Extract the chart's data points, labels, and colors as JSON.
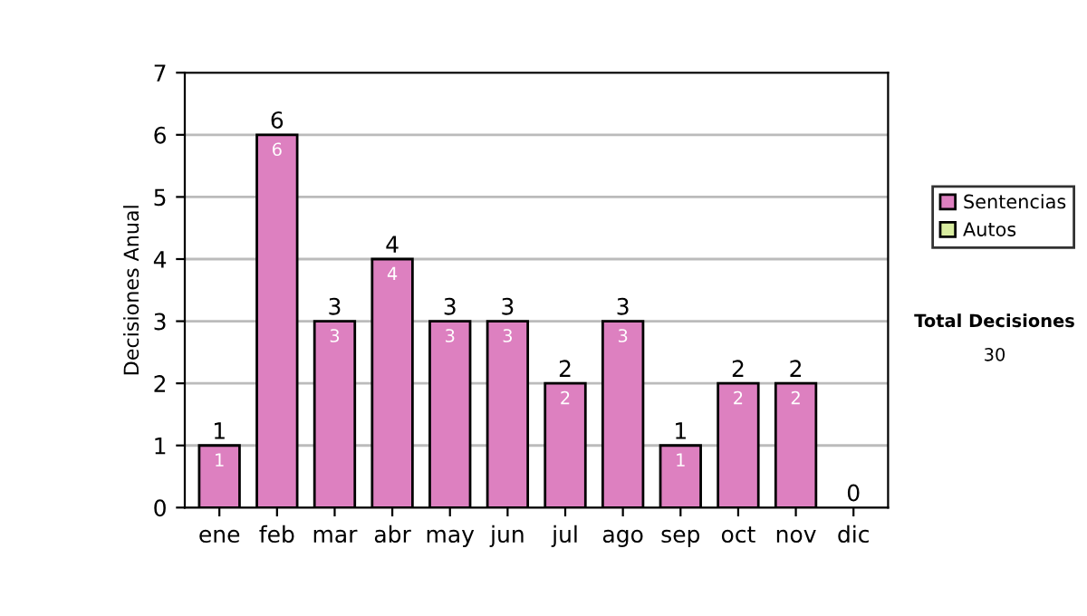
{
  "chart_data": {
    "type": "bar",
    "ylabel": "Decisiones Anual",
    "categories": [
      "ene",
      "feb",
      "mar",
      "abr",
      "may",
      "jun",
      "jul",
      "ago",
      "sep",
      "oct",
      "nov",
      "dic"
    ],
    "series": [
      {
        "name": "Sentencias",
        "color": "#dd80c0",
        "values": [
          1,
          6,
          3,
          4,
          3,
          3,
          2,
          3,
          1,
          2,
          2,
          0
        ],
        "value_labels": [
          "1",
          "6",
          "3",
          "4",
          "3",
          "3",
          "2",
          "3",
          "1",
          "2",
          "2",
          null
        ]
      },
      {
        "name": "Autos",
        "color": "#d8eca0",
        "values": [
          0,
          0,
          0,
          0,
          0,
          0,
          0,
          0,
          0,
          0,
          0,
          0
        ]
      }
    ],
    "stacked": true,
    "totals": [
      "1",
      "6",
      "3",
      "4",
      "3",
      "3",
      "2",
      "3",
      "1",
      "2",
      "2",
      "0"
    ],
    "ylim": [
      0,
      7
    ],
    "yticks": [
      0,
      1,
      2,
      3,
      4,
      5,
      6,
      7
    ],
    "grid": "y",
    "legend": "right",
    "annotations": [
      "Total Decisiones",
      "30"
    ]
  }
}
